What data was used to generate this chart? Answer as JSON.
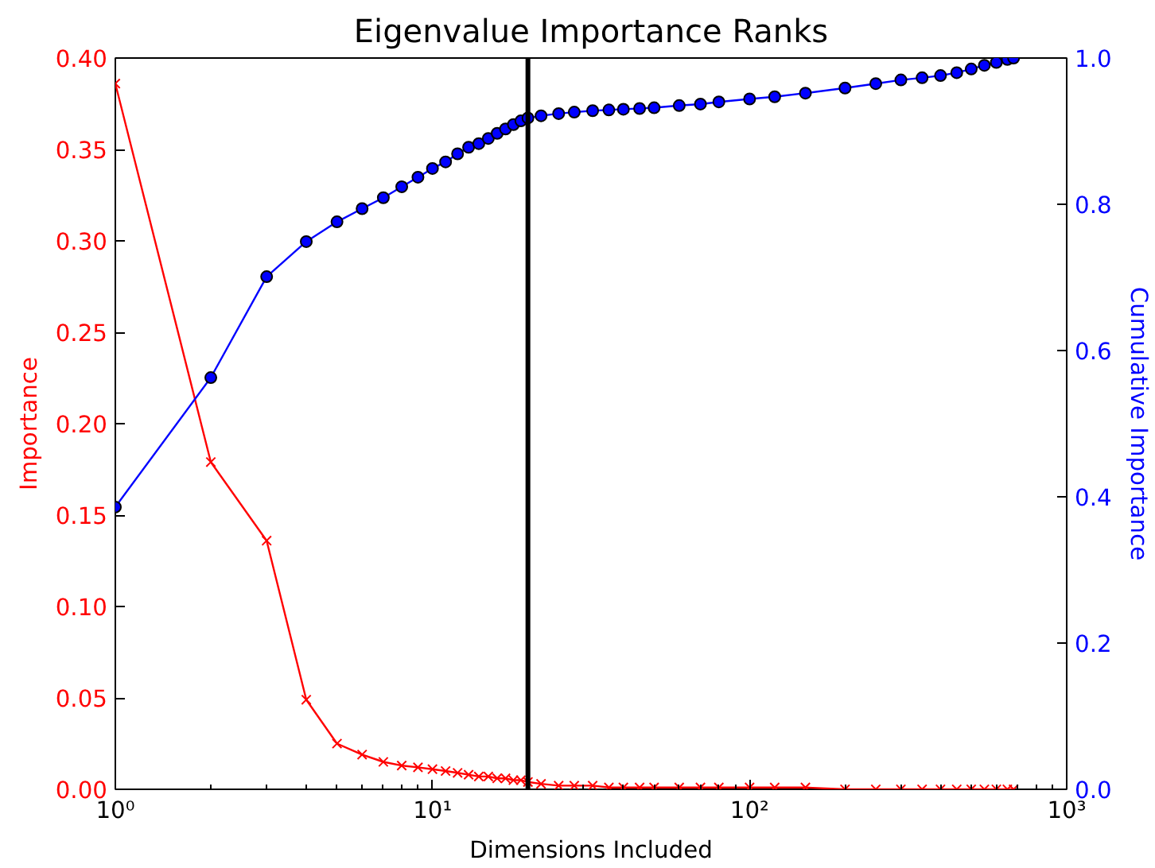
{
  "chart_data": {
    "type": "line",
    "title": "Eigenvalue Importance Ranks",
    "xlabel": "Dimensions Included",
    "ylabel": "Importance",
    "y2label": "Cumulative Importance",
    "log": "x",
    "grid": false,
    "xlim": [
      1,
      1000
    ],
    "xticks": [
      {
        "value": 1,
        "label": "10⁰"
      },
      {
        "value": 10,
        "label": "10¹"
      },
      {
        "value": 100,
        "label": "10²"
      },
      {
        "value": 1000,
        "label": "10³"
      }
    ],
    "ylim": [
      0,
      0.4
    ],
    "yticks": [
      {
        "value": 0,
        "label": "0.00"
      },
      {
        "value": 0.05,
        "label": "0.05"
      },
      {
        "value": 0.1,
        "label": "0.10"
      },
      {
        "value": 0.15,
        "label": "0.15"
      },
      {
        "value": 0.2,
        "label": "0.20"
      },
      {
        "value": 0.25,
        "label": "0.25"
      },
      {
        "value": 0.3,
        "label": "0.30"
      },
      {
        "value": 0.35,
        "label": "0.35"
      },
      {
        "value": 0.4,
        "label": "0.40"
      }
    ],
    "y2lim": [
      0,
      1
    ],
    "y2ticks": [
      {
        "value": 0,
        "label": "0.0"
      },
      {
        "value": 0.2,
        "label": "0.2"
      },
      {
        "value": 0.4,
        "label": "0.4"
      },
      {
        "value": 0.6,
        "label": "0.6"
      },
      {
        "value": 0.8,
        "label": "0.8"
      },
      {
        "value": 1,
        "label": "1.0"
      }
    ],
    "ref_lines": [
      {
        "axis": "x",
        "value": 20,
        "color": "#000000"
      }
    ],
    "series": [
      {
        "color": "#ff0000",
        "marker": "cross",
        "x": [
          1,
          2,
          3,
          4,
          5,
          6,
          7,
          8,
          9,
          10,
          11,
          12,
          13,
          14,
          15,
          16,
          17,
          18,
          19,
          20,
          22,
          25,
          28,
          32,
          36,
          40,
          45,
          50,
          60,
          70,
          80,
          100,
          120,
          150,
          200,
          250,
          300,
          350,
          400,
          450,
          500,
          550,
          600,
          650,
          680
        ],
        "values": [
          0.386,
          0.179,
          0.136,
          0.049,
          0.025,
          0.019,
          0.015,
          0.013,
          0.012,
          0.011,
          0.01,
          0.009,
          0.008,
          0.007,
          0.007,
          0.006,
          0.006,
          0.005,
          0.005,
          0.004,
          0.003,
          0.002,
          0.002,
          0.002,
          0.001,
          0.001,
          0.001,
          0.001,
          0.001,
          0.001,
          0.001,
          0.001,
          0.001,
          0.001,
          0.0,
          0.0,
          0.0,
          0.0,
          0.0,
          0.0,
          0.0,
          0.0,
          0.0,
          0.0,
          0.0
        ]
      },
      {
        "color": "#0000ff",
        "marker": "circle",
        "axis": "y2",
        "x": [
          1,
          2,
          3,
          4,
          5,
          6,
          7,
          8,
          9,
          10,
          11,
          12,
          13,
          14,
          15,
          16,
          17,
          18,
          19,
          20,
          22,
          25,
          28,
          32,
          36,
          40,
          45,
          50,
          60,
          70,
          80,
          100,
          120,
          150,
          200,
          250,
          300,
          350,
          400,
          450,
          500,
          550,
          600,
          650,
          680
        ],
        "values": [
          0.386,
          0.563,
          0.701,
          0.749,
          0.776,
          0.794,
          0.809,
          0.824,
          0.837,
          0.849,
          0.858,
          0.869,
          0.878,
          0.883,
          0.89,
          0.897,
          0.903,
          0.909,
          0.914,
          0.918,
          0.921,
          0.924,
          0.926,
          0.928,
          0.929,
          0.93,
          0.931,
          0.932,
          0.935,
          0.937,
          0.94,
          0.944,
          0.947,
          0.952,
          0.959,
          0.965,
          0.97,
          0.973,
          0.976,
          0.98,
          0.985,
          0.99,
          0.994,
          0.998,
          1.0
        ]
      }
    ]
  }
}
